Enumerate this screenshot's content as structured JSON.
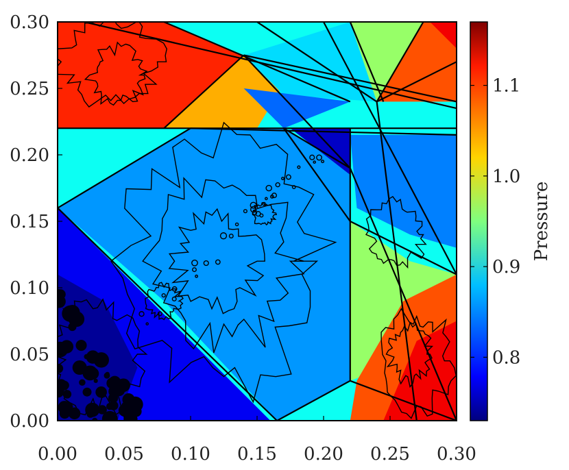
{
  "chart_data": {
    "type": "heatmap",
    "title": "",
    "xlabel": "",
    "ylabel": "",
    "xlim": [
      0.0,
      0.3
    ],
    "ylim": [
      0.0,
      0.3
    ],
    "x_ticks": [
      "0.00",
      "0.05",
      "0.10",
      "0.15",
      "0.20",
      "0.25",
      "0.30"
    ],
    "y_ticks": [
      "0.00",
      "0.05",
      "0.10",
      "0.15",
      "0.20",
      "0.25",
      "0.30"
    ],
    "colorbar": {
      "label": "Pressure",
      "range": [
        0.73,
        1.17
      ],
      "ticks": [
        "0.8",
        "0.9",
        "1.0",
        "1.1"
      ],
      "colormap": "jet"
    },
    "regions": [
      {
        "name": "lower-left wedge",
        "pressure": 0.78
      },
      {
        "name": "central diamond",
        "pressure": 0.85
      },
      {
        "name": "small dark triangle",
        "pressure": 0.75
      },
      {
        "name": "upper-left corner",
        "pressure": 1.1
      },
      {
        "name": "lower-right corner",
        "pressure": 1.1
      },
      {
        "name": "upper-right corner",
        "pressure": 1.08
      },
      {
        "name": "right middle triangle",
        "pressure": 0.96
      },
      {
        "name": "top middle wedge",
        "pressure": 0.9
      }
    ]
  }
}
